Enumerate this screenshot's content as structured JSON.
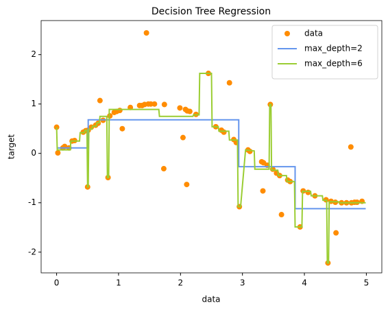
{
  "chart_data": {
    "type": "scatter",
    "title": "Decision Tree Regression",
    "x_label": "data",
    "y_label": "target",
    "xlim": [
      -0.25,
      5.25
    ],
    "ylim": [
      -2.42,
      2.69
    ],
    "xticks": [
      0,
      1,
      2,
      3,
      4,
      5
    ],
    "yticks": [
      -2,
      -1,
      0,
      1,
      2
    ],
    "legend": "upper right",
    "grid": false,
    "series": [
      {
        "name": "data",
        "type": "scatter",
        "color": "#ff8c00",
        "x": [
          0.0,
          0.02,
          0.1,
          0.13,
          0.2,
          0.25,
          0.29,
          0.43,
          0.47,
          0.5,
          0.51,
          0.56,
          0.63,
          0.67,
          0.7,
          0.75,
          0.83,
          0.86,
          0.93,
          0.97,
          1.02,
          1.06,
          1.19,
          1.34,
          1.38,
          1.42,
          1.45,
          1.48,
          1.52,
          1.58,
          1.74,
          1.73,
          1.99,
          2.04,
          2.08,
          2.11,
          2.1,
          2.15,
          2.25,
          2.45,
          2.57,
          2.66,
          2.7,
          2.79,
          2.86,
          2.9,
          2.95,
          3.09,
          3.12,
          3.31,
          3.34,
          3.33,
          3.4,
          3.45,
          3.49,
          3.55,
          3.6,
          3.63,
          3.73,
          3.77,
          3.93,
          3.98,
          4.06,
          4.17,
          4.35,
          4.38,
          4.43,
          4.5,
          4.51,
          4.6,
          4.68,
          4.75,
          4.76,
          4.81,
          4.85,
          4.93
        ],
        "values": [
          0.53,
          0.01,
          0.11,
          0.14,
          0.11,
          0.25,
          0.26,
          0.43,
          0.46,
          -0.68,
          0.47,
          0.53,
          0.57,
          0.61,
          1.07,
          0.67,
          -0.49,
          0.76,
          0.83,
          0.85,
          0.87,
          0.5,
          0.93,
          0.97,
          0.97,
          0.99,
          2.44,
          1.0,
          1.0,
          1.0,
          0.99,
          -0.31,
          0.92,
          0.32,
          0.89,
          0.86,
          -0.63,
          0.85,
          0.79,
          1.62,
          0.54,
          0.47,
          0.43,
          1.43,
          0.28,
          0.22,
          -1.08,
          0.07,
          0.04,
          -0.17,
          -0.19,
          -0.76,
          -0.24,
          0.99,
          -0.32,
          -0.4,
          -0.45,
          -1.24,
          -0.54,
          -0.57,
          -1.49,
          -0.76,
          -0.79,
          -0.86,
          -0.94,
          -2.22,
          -0.97,
          -0.99,
          -1.61,
          -1.0,
          -1.0,
          0.13,
          -1.0,
          -0.99,
          -0.99,
          -0.97
        ]
      },
      {
        "name": "max_depth=2",
        "type": "line",
        "color": "#6495ed",
        "x": [
          0,
          0.51,
          0.51,
          2.94,
          2.94,
          3.85,
          3.85,
          4.99
        ],
        "values": [
          0.11,
          0.11,
          0.68,
          0.68,
          -0.27,
          -0.27,
          -1.12,
          -1.12
        ]
      },
      {
        "name": "max_depth=6",
        "type": "line",
        "color": "#9acd32",
        "x": [
          0,
          0.01,
          0.22,
          0.23,
          0.37,
          0.38,
          0.45,
          0.46,
          0.49,
          0.5,
          0.51,
          0.52,
          0.57,
          0.58,
          0.64,
          0.65,
          0.69,
          0.7,
          0.81,
          0.82,
          0.84,
          0.85,
          1.65,
          1.66,
          2.2,
          2.21,
          2.3,
          2.31,
          2.5,
          2.51,
          2.61,
          2.62,
          2.78,
          2.79,
          2.92,
          2.93,
          2.97,
          3.05,
          3.19,
          3.2,
          3.43,
          3.44,
          3.46,
          3.47,
          3.57,
          3.58,
          3.71,
          3.72,
          3.84,
          3.85,
          3.96,
          3.97,
          4.1,
          4.11,
          4.29,
          4.3,
          4.36,
          4.37,
          4.39,
          4.4,
          4.55,
          4.56,
          4.99
        ],
        "values": [
          0.53,
          0.07,
          0.07,
          0.25,
          0.25,
          0.42,
          0.42,
          0.47,
          0.47,
          -0.68,
          -0.68,
          0.49,
          0.49,
          0.55,
          0.55,
          0.62,
          0.62,
          0.75,
          0.75,
          -0.49,
          -0.49,
          0.89,
          0.89,
          0.75,
          0.75,
          0.78,
          0.78,
          1.62,
          1.62,
          0.54,
          0.54,
          0.45,
          0.45,
          0.27,
          0.27,
          -1.08,
          -1.08,
          0.07,
          0.05,
          -0.32,
          -0.32,
          0.99,
          0.99,
          -0.34,
          -0.34,
          -0.45,
          -0.45,
          -0.57,
          -0.57,
          -1.49,
          -1.49,
          -0.77,
          -0.77,
          -0.86,
          -0.86,
          -0.95,
          -0.95,
          -2.22,
          -2.22,
          -0.98,
          -0.98,
          -1.0,
          -1.0
        ]
      }
    ]
  }
}
